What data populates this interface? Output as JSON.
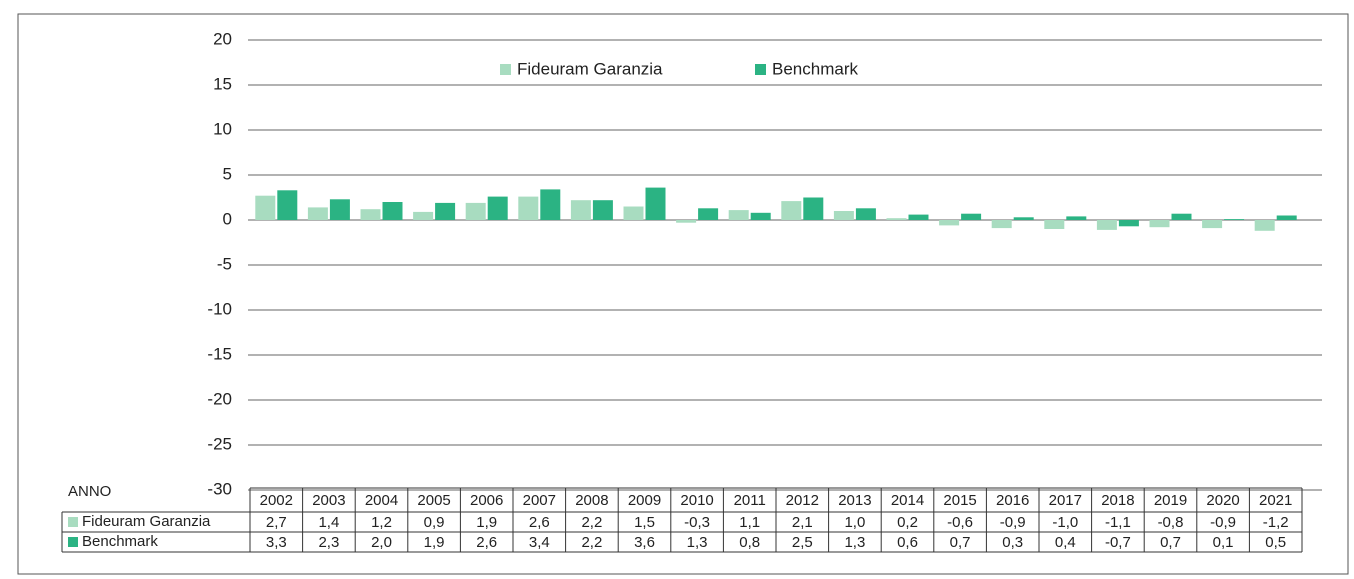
{
  "chart_data": {
    "type": "bar",
    "table_header": "ANNO",
    "categories": [
      "2002",
      "2003",
      "2004",
      "2005",
      "2006",
      "2007",
      "2008",
      "2009",
      "2010",
      "2011",
      "2012",
      "2013",
      "2014",
      "2015",
      "2016",
      "2017",
      "2018",
      "2019",
      "2020",
      "2021"
    ],
    "series": [
      {
        "name": "Fideuram Garanzia",
        "color": "#a8dcc0",
        "values": [
          2.7,
          1.4,
          1.2,
          0.9,
          1.9,
          2.6,
          2.2,
          1.5,
          -0.3,
          1.1,
          2.1,
          1.0,
          0.2,
          -0.6,
          -0.9,
          -1.0,
          -1.1,
          -0.8,
          -0.9,
          -1.2
        ],
        "value_labels": [
          "2,7",
          "1,4",
          "1,2",
          "0,9",
          "1,9",
          "2,6",
          "2,2",
          "1,5",
          "-0,3",
          "1,1",
          "2,1",
          "1,0",
          "0,2",
          "-0,6",
          "-0,9",
          "-1,0",
          "-1,1",
          "-0,8",
          "-0,9",
          "-1,2"
        ]
      },
      {
        "name": "Benchmark",
        "color": "#2bb383",
        "values": [
          3.3,
          2.3,
          2.0,
          1.9,
          2.6,
          3.4,
          2.2,
          3.6,
          1.3,
          0.8,
          2.5,
          1.3,
          0.6,
          0.7,
          0.3,
          0.4,
          -0.7,
          0.7,
          0.1,
          0.5
        ],
        "value_labels": [
          "3,3",
          "2,3",
          "2,0",
          "1,9",
          "2,6",
          "3,4",
          "2,2",
          "3,6",
          "1,3",
          "0,8",
          "2,5",
          "1,3",
          "0,6",
          "0,7",
          "0,3",
          "0,4",
          "-0,7",
          "0,7",
          "0,1",
          "0,5"
        ]
      }
    ],
    "ylim": [
      -30,
      20
    ],
    "yticks": [
      20,
      15,
      10,
      5,
      0,
      -5,
      -10,
      -15,
      -20,
      -25,
      -30
    ],
    "grid": true,
    "legend": "top"
  }
}
